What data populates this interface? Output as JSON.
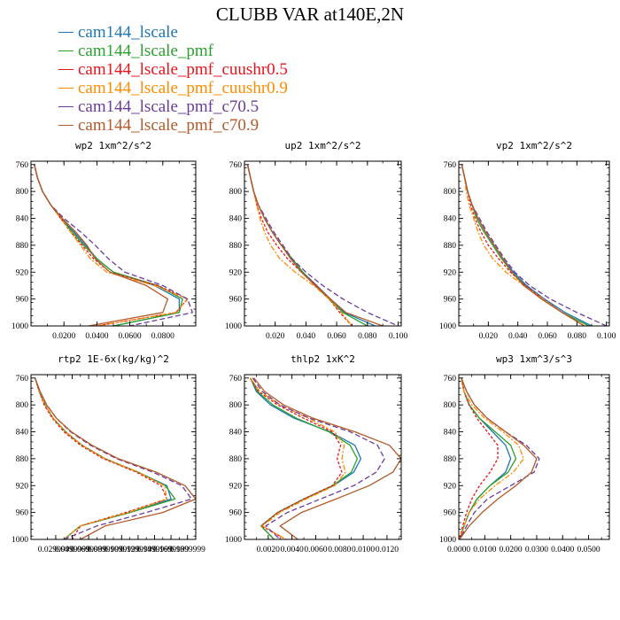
{
  "title": "CLUBB VAR at140E,2N",
  "legend": [
    {
      "label": "cam144_lscale",
      "color": "#1f77b4"
    },
    {
      "label": "cam144_lscale_pmf",
      "color": "#2ca02c"
    },
    {
      "label": "cam144_lscale_pmf_cuushr0.5",
      "color": "#e8141c"
    },
    {
      "label": "cam144_lscale_pmf_cuushr0.9",
      "color": "#ff8c00"
    },
    {
      "label": "cam144_lscale_pmf_c70.5",
      "color": "#6a3d9a"
    },
    {
      "label": "cam144_lscale_pmf_c70.9",
      "color": "#b35a2a"
    }
  ],
  "chart_data": [
    {
      "type": "line",
      "title": "wp2   1xm^2/s^2",
      "ylim": [
        1000,
        755
      ],
      "yticks": [
        760,
        800,
        840,
        880,
        920,
        960,
        1000
      ],
      "xlim": [
        0,
        0.1
      ],
      "xticks": [
        0.02,
        0.04,
        0.06,
        0.08
      ],
      "xtick_labels": [
        "0.0200",
        "0.0400",
        "0.0600",
        "0.0800"
      ],
      "p": [
        760,
        780,
        800,
        820,
        840,
        860,
        880,
        900,
        920,
        940,
        960,
        980,
        1000
      ],
      "series": [
        {
          "name": "cam144_lscale",
          "x": [
            0.002,
            0.004,
            0.007,
            0.012,
            0.018,
            0.026,
            0.033,
            0.04,
            0.05,
            0.075,
            0.09,
            0.09,
            0.05
          ]
        },
        {
          "name": "cam144_lscale_pmf",
          "x": [
            0.002,
            0.004,
            0.007,
            0.012,
            0.018,
            0.025,
            0.032,
            0.04,
            0.05,
            0.077,
            0.092,
            0.09,
            0.05
          ]
        },
        {
          "name": "cam144_lscale_pmf_cuushr0.5",
          "x": [
            0.002,
            0.004,
            0.007,
            0.012,
            0.018,
            0.024,
            0.031,
            0.038,
            0.048,
            0.077,
            0.095,
            0.088,
            0.04
          ]
        },
        {
          "name": "cam144_lscale_pmf_cuushr0.9",
          "x": [
            0.002,
            0.004,
            0.007,
            0.012,
            0.018,
            0.024,
            0.03,
            0.036,
            0.046,
            0.075,
            0.095,
            0.088,
            0.04
          ]
        },
        {
          "name": "cam144_lscale_pmf_c70.5",
          "x": [
            0.002,
            0.004,
            0.007,
            0.012,
            0.02,
            0.03,
            0.039,
            0.047,
            0.057,
            0.08,
            0.095,
            0.098,
            0.06
          ]
        },
        {
          "name": "cam144_lscale_pmf_c70.9",
          "x": [
            0.002,
            0.004,
            0.007,
            0.012,
            0.019,
            0.027,
            0.034,
            0.039,
            0.048,
            0.07,
            0.083,
            0.08,
            0.035
          ]
        }
      ]
    },
    {
      "type": "line",
      "title": "up2   1xm^2/s^2",
      "ylim": [
        1000,
        755
      ],
      "yticks": [
        760,
        800,
        840,
        880,
        920,
        960,
        1000
      ],
      "xlim": [
        0,
        0.102
      ],
      "xticks": [
        0.02,
        0.04,
        0.06,
        0.08,
        0.1
      ],
      "xtick_labels": [
        "0.020",
        "0.040",
        "0.060",
        "0.080",
        "0.100"
      ],
      "p": [
        760,
        780,
        800,
        820,
        840,
        860,
        880,
        900,
        920,
        940,
        960,
        980,
        1000
      ],
      "series": [
        {
          "name": "cam144_lscale",
          "x": [
            0.002,
            0.004,
            0.006,
            0.009,
            0.013,
            0.018,
            0.024,
            0.031,
            0.038,
            0.047,
            0.056,
            0.065,
            0.085
          ]
        },
        {
          "name": "cam144_lscale_pmf",
          "x": [
            0.002,
            0.004,
            0.006,
            0.009,
            0.013,
            0.018,
            0.024,
            0.031,
            0.038,
            0.046,
            0.055,
            0.064,
            0.08
          ]
        },
        {
          "name": "cam144_lscale_pmf_cuushr0.5",
          "x": [
            0.002,
            0.004,
            0.006,
            0.008,
            0.011,
            0.015,
            0.021,
            0.028,
            0.037,
            0.047,
            0.055,
            0.062,
            0.07
          ]
        },
        {
          "name": "cam144_lscale_pmf_cuushr0.9",
          "x": [
            0.002,
            0.004,
            0.006,
            0.008,
            0.01,
            0.013,
            0.017,
            0.023,
            0.033,
            0.045,
            0.055,
            0.063,
            0.07
          ]
        },
        {
          "name": "cam144_lscale_pmf_c70.5",
          "x": [
            0.002,
            0.004,
            0.006,
            0.009,
            0.014,
            0.019,
            0.025,
            0.031,
            0.04,
            0.051,
            0.064,
            0.08,
            0.1
          ]
        },
        {
          "name": "cam144_lscale_pmf_c70.9",
          "x": [
            0.002,
            0.004,
            0.006,
            0.009,
            0.013,
            0.018,
            0.024,
            0.03,
            0.037,
            0.046,
            0.056,
            0.066,
            0.09
          ]
        }
      ]
    },
    {
      "type": "line",
      "title": "vp2   1xm^2/s^2",
      "ylim": [
        1000,
        755
      ],
      "yticks": [
        760,
        800,
        840,
        880,
        920,
        960,
        1000
      ],
      "xlim": [
        0,
        0.102
      ],
      "xticks": [
        0.02,
        0.04,
        0.06,
        0.08,
        0.1
      ],
      "xtick_labels": [
        "0.020",
        "0.040",
        "0.060",
        "0.080",
        "0.100"
      ],
      "p": [
        760,
        780,
        800,
        820,
        840,
        860,
        880,
        900,
        920,
        940,
        960,
        980,
        1000
      ],
      "series": [
        {
          "name": "cam144_lscale",
          "x": [
            0.002,
            0.004,
            0.006,
            0.009,
            0.013,
            0.018,
            0.024,
            0.03,
            0.037,
            0.046,
            0.058,
            0.072,
            0.09
          ]
        },
        {
          "name": "cam144_lscale_pmf",
          "x": [
            0.002,
            0.004,
            0.006,
            0.009,
            0.012,
            0.017,
            0.023,
            0.029,
            0.036,
            0.045,
            0.056,
            0.07,
            0.088
          ]
        },
        {
          "name": "cam144_lscale_pmf_cuushr0.5",
          "x": [
            0.002,
            0.004,
            0.006,
            0.008,
            0.011,
            0.015,
            0.02,
            0.027,
            0.035,
            0.045,
            0.057,
            0.07,
            0.085
          ]
        },
        {
          "name": "cam144_lscale_pmf_cuushr0.9",
          "x": [
            0.002,
            0.004,
            0.005,
            0.007,
            0.01,
            0.013,
            0.017,
            0.023,
            0.032,
            0.044,
            0.057,
            0.07,
            0.085
          ]
        },
        {
          "name": "cam144_lscale_pmf_c70.5",
          "x": [
            0.002,
            0.004,
            0.006,
            0.009,
            0.014,
            0.019,
            0.025,
            0.031,
            0.038,
            0.048,
            0.062,
            0.08,
            0.1
          ]
        },
        {
          "name": "cam144_lscale_pmf_c70.9",
          "x": [
            0.002,
            0.004,
            0.006,
            0.009,
            0.013,
            0.018,
            0.024,
            0.03,
            0.036,
            0.044,
            0.056,
            0.07,
            0.085
          ]
        }
      ]
    },
    {
      "type": "line",
      "title": "rtp2   1E-6x(kg/kg)^2",
      "ylim": [
        1000,
        755
      ],
      "yticks": [
        760,
        800,
        840,
        880,
        920,
        960,
        1000
      ],
      "xlim": [
        0,
        0.2
      ],
      "xticks": [
        0.03,
        0.05,
        0.07,
        0.09,
        0.11,
        0.13,
        0.15,
        0.17,
        0.19
      ],
      "xtick_labels": [
        "0.0299999",
        "0.0499999",
        "0.0699999",
        "0.0899999",
        "0.1099999",
        "0.1299999",
        "0.1499999",
        "0.1699999",
        "0.1899999"
      ],
      "p": [
        760,
        780,
        800,
        820,
        840,
        860,
        880,
        900,
        920,
        940,
        960,
        980,
        1000
      ],
      "series": [
        {
          "name": "cam144_lscale",
          "x": [
            0.005,
            0.01,
            0.017,
            0.027,
            0.042,
            0.062,
            0.09,
            0.13,
            0.165,
            0.17,
            0.12,
            0.06,
            0.04
          ]
        },
        {
          "name": "cam144_lscale_pmf",
          "x": [
            0.005,
            0.01,
            0.017,
            0.027,
            0.042,
            0.062,
            0.09,
            0.13,
            0.163,
            0.175,
            0.12,
            0.06,
            0.04
          ]
        },
        {
          "name": "cam144_lscale_pmf_cuushr0.5",
          "x": [
            0.005,
            0.01,
            0.016,
            0.026,
            0.04,
            0.06,
            0.088,
            0.128,
            0.158,
            0.165,
            0.115,
            0.06,
            0.05
          ]
        },
        {
          "name": "cam144_lscale_pmf_cuushr0.9",
          "x": [
            0.005,
            0.01,
            0.017,
            0.027,
            0.042,
            0.062,
            0.09,
            0.13,
            0.162,
            0.165,
            0.118,
            0.06,
            0.04
          ]
        },
        {
          "name": "cam144_lscale_pmf_c70.5",
          "x": [
            0.005,
            0.011,
            0.019,
            0.031,
            0.048,
            0.072,
            0.104,
            0.148,
            0.183,
            0.195,
            0.14,
            0.08,
            0.04
          ]
        },
        {
          "name": "cam144_lscale_pmf_c70.9",
          "x": [
            0.005,
            0.011,
            0.019,
            0.031,
            0.049,
            0.074,
            0.106,
            0.152,
            0.187,
            0.2,
            0.16,
            0.09,
            0.06
          ]
        }
      ]
    },
    {
      "type": "line",
      "title": "thlp2   1xK^2",
      "ylim": [
        1000,
        755
      ],
      "yticks": [
        760,
        800,
        840,
        880,
        920,
        960,
        1000
      ],
      "xlim": [
        0,
        0.0132
      ],
      "xticks": [
        0.002,
        0.004,
        0.006,
        0.008,
        0.01,
        0.012
      ],
      "xtick_labels": [
        "0.0020",
        "0.0040",
        "0.0060",
        "0.0080",
        "0.0100",
        "0.0120"
      ],
      "p": [
        760,
        780,
        800,
        820,
        840,
        860,
        880,
        900,
        920,
        940,
        960,
        980,
        1000
      ],
      "series": [
        {
          "name": "cam144_lscale",
          "x": [
            0.0005,
            0.001,
            0.0022,
            0.0042,
            0.0072,
            0.0093,
            0.0098,
            0.0092,
            0.0075,
            0.005,
            0.0028,
            0.0014,
            0.0025
          ]
        },
        {
          "name": "cam144_lscale_pmf",
          "x": [
            0.0005,
            0.0011,
            0.0024,
            0.0044,
            0.0071,
            0.0089,
            0.0095,
            0.009,
            0.0074,
            0.005,
            0.0028,
            0.0014,
            0.0025
          ]
        },
        {
          "name": "cam144_lscale_pmf_cuushr0.5",
          "x": [
            0.0005,
            0.0012,
            0.0028,
            0.005,
            0.0074,
            0.0081,
            0.0078,
            0.0082,
            0.0074,
            0.005,
            0.0028,
            0.0014,
            0.0035
          ]
        },
        {
          "name": "cam144_lscale_pmf_cuushr0.9",
          "x": [
            0.0005,
            0.0013,
            0.003,
            0.0054,
            0.0076,
            0.0084,
            0.0082,
            0.0085,
            0.0076,
            0.0052,
            0.003,
            0.0015,
            0.0035
          ]
        },
        {
          "name": "cam144_lscale_pmf_c70.5",
          "x": [
            0.0007,
            0.0015,
            0.003,
            0.0055,
            0.0089,
            0.0112,
            0.0118,
            0.0111,
            0.0092,
            0.0064,
            0.0036,
            0.0018,
            0.003
          ]
        },
        {
          "name": "cam144_lscale_pmf_c70.9",
          "x": [
            0.0008,
            0.0017,
            0.0033,
            0.0058,
            0.0093,
            0.0122,
            0.0132,
            0.0125,
            0.0105,
            0.0077,
            0.0048,
            0.003,
            0.0045
          ]
        }
      ]
    },
    {
      "type": "line",
      "title": "wp3   1xm^3/s^3",
      "ylim": [
        1000,
        755
      ],
      "yticks": [
        760,
        800,
        840,
        880,
        920,
        960,
        1000
      ],
      "xlim": [
        0,
        0.058
      ],
      "xticks": [
        0,
        0.01,
        0.02,
        0.03,
        0.04,
        0.05
      ],
      "xtick_labels": [
        "0.0000",
        "0.0100",
        "0.0200",
        "0.0300",
        "0.0400",
        "0.0500"
      ],
      "p": [
        760,
        780,
        800,
        820,
        840,
        860,
        880,
        900,
        920,
        940,
        960,
        980,
        1000
      ],
      "series": [
        {
          "name": "cam144_lscale",
          "x": [
            0.001,
            0.002,
            0.004,
            0.008,
            0.013,
            0.018,
            0.02,
            0.018,
            0.012,
            0.007,
            0.004,
            0.002,
            0.0003
          ]
        },
        {
          "name": "cam144_lscale_pmf",
          "x": [
            0.001,
            0.002,
            0.004,
            0.008,
            0.014,
            0.02,
            0.022,
            0.019,
            0.012,
            0.007,
            0.004,
            0.002,
            0.0003
          ]
        },
        {
          "name": "cam144_lscale_pmf_cuushr0.5",
          "x": [
            0.001,
            0.002,
            0.004,
            0.007,
            0.011,
            0.015,
            0.015,
            0.012,
            0.008,
            0.005,
            0.003,
            0.0015,
            0.0003
          ]
        },
        {
          "name": "cam144_lscale_pmf_cuushr0.9",
          "x": [
            0.001,
            0.002,
            0.005,
            0.01,
            0.017,
            0.023,
            0.025,
            0.021,
            0.014,
            0.008,
            0.004,
            0.002,
            0.0003
          ]
        },
        {
          "name": "cam144_lscale_pmf_c70.5",
          "x": [
            0.001,
            0.003,
            0.006,
            0.011,
            0.018,
            0.026,
            0.031,
            0.029,
            0.02,
            0.011,
            0.006,
            0.003,
            0.0003
          ]
        },
        {
          "name": "cam144_lscale_pmf_c70.9",
          "x": [
            0.001,
            0.003,
            0.006,
            0.011,
            0.018,
            0.025,
            0.03,
            0.028,
            0.022,
            0.015,
            0.009,
            0.004,
            0.0003
          ]
        }
      ]
    }
  ]
}
